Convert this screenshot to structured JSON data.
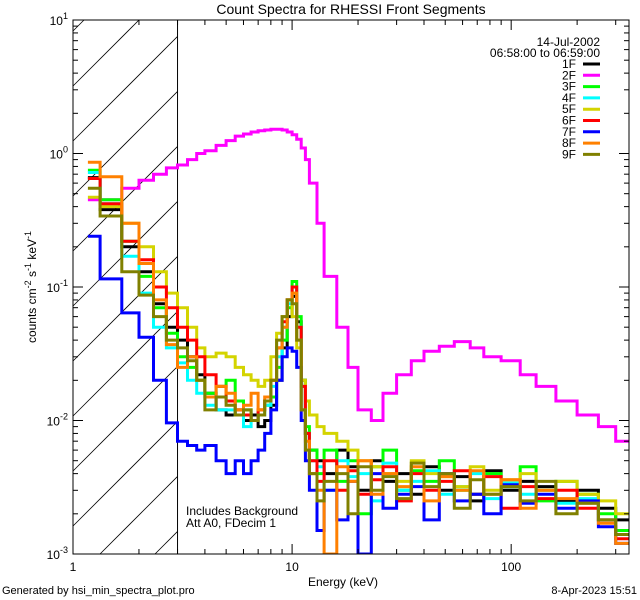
{
  "chart_data": {
    "type": "line",
    "title": "Count Spectra for RHESSI Front Segments",
    "xlabel": "Energy (keV)",
    "ylabel": "counts cm-2 s-1 keV-1",
    "xscale": "log",
    "yscale": "log",
    "xlim": [
      1,
      345
    ],
    "ylim": [
      0.001,
      10
    ],
    "x_tick_labels": [
      "1",
      "10",
      "100"
    ],
    "y_tick_labels": [
      {
        "base": "10",
        "exp": "1"
      },
      {
        "base": "10",
        "exp": "0"
      },
      {
        "base": "10",
        "exp": "-1"
      },
      {
        "base": "10",
        "exp": "-2"
      },
      {
        "base": "10",
        "exp": "-3"
      }
    ],
    "shaded_region_keV": [
      1,
      3
    ],
    "legend_position": "top-right",
    "date": "14-Jul-2002",
    "time_range": "06:58:00 to 06:59:00",
    "annotations": [
      "Includes Background",
      "Att A0, FDecim 1"
    ],
    "energy_edges": [
      1.17,
      1.33,
      1.67,
      2.0,
      2.33,
      2.67,
      3.0,
      3.33,
      3.67,
      4.0,
      4.5,
      5,
      5.5,
      6,
      6.5,
      7,
      7.5,
      8,
      8.5,
      9,
      9.5,
      10,
      10.5,
      11,
      11.5,
      12,
      13,
      14,
      16,
      18,
      20,
      23,
      26,
      30,
      35,
      40,
      47,
      55,
      65,
      75,
      90,
      110,
      130,
      160,
      200,
      250,
      300,
      345
    ],
    "series": [
      {
        "name": "1F",
        "color": "#000000",
        "values": [
          0.66,
          0.38,
          0.2,
          0.13,
          0.075,
          0.05,
          0.04,
          0.03,
          0.022,
          0.016,
          0.012,
          0.011,
          0.012,
          0.01,
          0.011,
          0.009,
          0.01,
          0.013,
          0.02,
          0.035,
          0.06,
          0.085,
          0.055,
          0.02,
          0.008,
          0.006,
          0.005,
          0.004,
          0.006,
          0.0045,
          0.003,
          0.005,
          0.0035,
          0.004,
          0.0028,
          0.0045,
          0.003,
          0.0038,
          0.0025,
          0.0042,
          0.003,
          0.0035,
          0.0032,
          0.0025,
          0.003,
          0.0022,
          0.0018
        ]
      },
      {
        "name": "2F",
        "color": "#ff00ff",
        "values": [
          0.45,
          0.45,
          0.55,
          0.63,
          0.7,
          0.78,
          0.82,
          0.9,
          1.0,
          1.05,
          1.15,
          1.25,
          1.35,
          1.4,
          1.45,
          1.48,
          1.5,
          1.52,
          1.52,
          1.5,
          1.45,
          1.38,
          1.28,
          1.1,
          0.9,
          0.6,
          0.3,
          0.12,
          0.05,
          0.025,
          0.012,
          0.01,
          0.016,
          0.022,
          0.028,
          0.033,
          0.036,
          0.039,
          0.035,
          0.03,
          0.028,
          0.022,
          0.018,
          0.014,
          0.011,
          0.009,
          0.007
        ]
      },
      {
        "name": "3F",
        "color": "#00ff00",
        "values": [
          0.75,
          0.45,
          0.22,
          0.12,
          0.07,
          0.045,
          0.03,
          0.025,
          0.02,
          0.016,
          0.018,
          0.02,
          0.014,
          0.012,
          0.01,
          0.012,
          0.013,
          0.015,
          0.025,
          0.04,
          0.07,
          0.11,
          0.06,
          0.02,
          0.009,
          0.006,
          0.004,
          0.006,
          0.0035,
          0.005,
          0.002,
          0.0045,
          0.006,
          0.003,
          0.0042,
          0.0035,
          0.005,
          0.003,
          0.0028,
          0.004,
          0.0032,
          0.0045,
          0.0025,
          0.0035,
          0.0028,
          0.002,
          0.0015
        ]
      },
      {
        "name": "4F",
        "color": "#00ffff",
        "values": [
          0.72,
          0.42,
          0.17,
          0.09,
          0.05,
          0.035,
          0.027,
          0.02,
          0.016,
          0.013,
          0.012,
          0.012,
          0.011,
          0.009,
          0.01,
          0.011,
          0.013,
          0.018,
          0.03,
          0.05,
          0.075,
          0.1,
          0.05,
          0.018,
          0.008,
          0.005,
          0.0045,
          0.003,
          0.005,
          0.0038,
          0.004,
          0.0025,
          0.0048,
          0.003,
          0.0035,
          0.0042,
          0.0028,
          0.0032,
          0.004,
          0.0026,
          0.0034,
          0.0028,
          0.003,
          0.0024,
          0.0026,
          0.0018,
          0.0014
        ]
      },
      {
        "name": "5F",
        "color": "#d4d400",
        "values": [
          0.47,
          0.4,
          0.3,
          0.2,
          0.13,
          0.09,
          0.07,
          0.05,
          0.035,
          0.03,
          0.032,
          0.03,
          0.025,
          0.022,
          0.02,
          0.018,
          0.02,
          0.03,
          0.045,
          0.06,
          0.08,
          0.06,
          0.035,
          0.02,
          0.014,
          0.011,
          0.009,
          0.008,
          0.007,
          0.006,
          0.005,
          0.0045,
          0.004,
          0.0035,
          0.005,
          0.004,
          0.0038,
          0.0032,
          0.0045,
          0.003,
          0.0036,
          0.004,
          0.003,
          0.0035,
          0.0028,
          0.0025,
          0.002
        ]
      },
      {
        "name": "6F",
        "color": "#ff0000",
        "values": [
          0.65,
          0.42,
          0.22,
          0.16,
          0.1,
          0.07,
          0.05,
          0.04,
          0.03,
          0.022,
          0.018,
          0.014,
          0.012,
          0.011,
          0.01,
          0.012,
          0.014,
          0.02,
          0.035,
          0.055,
          0.08,
          0.1,
          0.05,
          0.018,
          0.008,
          0.005,
          0.0035,
          0.005,
          0.003,
          0.0042,
          0.0028,
          0.0036,
          0.0045,
          0.0025,
          0.004,
          0.003,
          0.0035,
          0.0042,
          0.0028,
          0.0038,
          0.0022,
          0.0032,
          0.0026,
          0.003,
          0.0022,
          0.0018,
          0.0013
        ]
      },
      {
        "name": "7F",
        "color": "#0000ff",
        "values": [
          0.24,
          0.115,
          0.064,
          0.042,
          0.02,
          0.0096,
          0.007,
          0.0065,
          0.006,
          0.0065,
          0.005,
          0.004,
          0.005,
          0.004,
          0.005,
          0.006,
          0.008,
          0.012,
          0.02,
          0.03,
          0.035,
          0.033,
          0.025,
          0.01,
          0.005,
          0.003,
          0.0015,
          0.003,
          0.0018,
          0.0035,
          0.001,
          0.004,
          0.0022,
          0.0028,
          0.0032,
          0.0018,
          0.004,
          0.0025,
          0.0028,
          0.002,
          0.0033,
          0.0024,
          0.0028,
          0.0022,
          0.0025,
          0.0016,
          0.0012
        ]
      },
      {
        "name": "8F",
        "color": "#ff8000",
        "values": [
          0.86,
          0.67,
          0.3,
          0.15,
          0.08,
          0.037,
          0.025,
          0.03,
          0.02,
          0.015,
          0.018,
          0.016,
          0.012,
          0.013,
          0.016,
          0.012,
          0.015,
          0.02,
          0.035,
          0.05,
          0.08,
          0.09,
          0.04,
          0.012,
          0.007,
          0.004,
          0.003,
          0.001,
          0.0045,
          0.0035,
          0.005,
          0.0028,
          0.004,
          0.0032,
          0.0045,
          0.0025,
          0.0038,
          0.003,
          0.0042,
          0.0028,
          0.0036,
          0.0022,
          0.003,
          0.0026,
          0.0024,
          0.0017,
          0.0012
        ]
      },
      {
        "name": "9F",
        "color": "#808000",
        "values": [
          0.55,
          0.34,
          0.13,
          0.087,
          0.06,
          0.04,
          0.035,
          0.028,
          0.02,
          0.012,
          0.015,
          0.013,
          0.011,
          0.012,
          0.01,
          0.011,
          0.014,
          0.02,
          0.04,
          0.06,
          0.08,
          0.075,
          0.04,
          0.012,
          0.006,
          0.004,
          0.0025,
          0.0035,
          0.004,
          0.002,
          0.0045,
          0.003,
          0.0038,
          0.0026,
          0.0048,
          0.0032,
          0.004,
          0.0022,
          0.0036,
          0.0028,
          0.0032,
          0.0025,
          0.0035,
          0.002,
          0.0024,
          0.0018,
          0.0014
        ]
      }
    ]
  },
  "footer": {
    "generated_by": "Generated by hsi_min_spectra_plot.pro",
    "timestamp": "8-Apr-2023 15:51"
  }
}
